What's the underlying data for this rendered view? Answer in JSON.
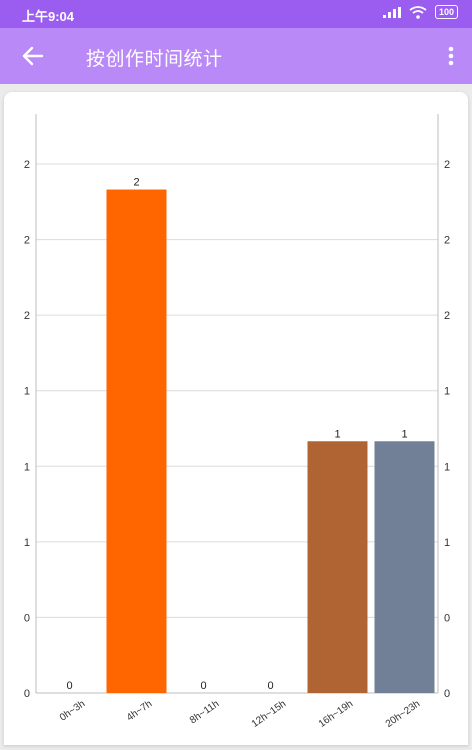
{
  "status_bar": {
    "time": "上午9:04",
    "battery": "100",
    "icons": [
      "signal-icon",
      "wifi-icon",
      "battery-icon"
    ]
  },
  "app_bar": {
    "title": "按创作时间统计",
    "back_icon": "arrow-left-icon",
    "more_icon": "more-vertical-icon"
  },
  "chart_data": {
    "type": "bar",
    "categories": [
      "0h~3h",
      "4h~7h",
      "8h~11h",
      "12h~15h",
      "16h~19h",
      "20h~23h"
    ],
    "values": [
      0,
      2,
      0,
      0,
      1,
      1
    ],
    "data_labels": [
      "0",
      "2",
      "0",
      "0",
      "1",
      "1"
    ],
    "bar_colors": [
      "#ff6600",
      "#ff6600",
      "#ff6600",
      "#ff6600",
      "#b06434",
      "#718096"
    ],
    "left_tick_labels": [
      "0",
      "0",
      "1",
      "1",
      "1",
      "2",
      "2",
      "2"
    ],
    "right_tick_labels": [
      "0",
      "0",
      "1",
      "1",
      "1",
      "2",
      "2",
      "2"
    ],
    "ylim": [
      0,
      2.3
    ],
    "grid": true,
    "title": "",
    "xlabel": "",
    "ylabel": ""
  }
}
